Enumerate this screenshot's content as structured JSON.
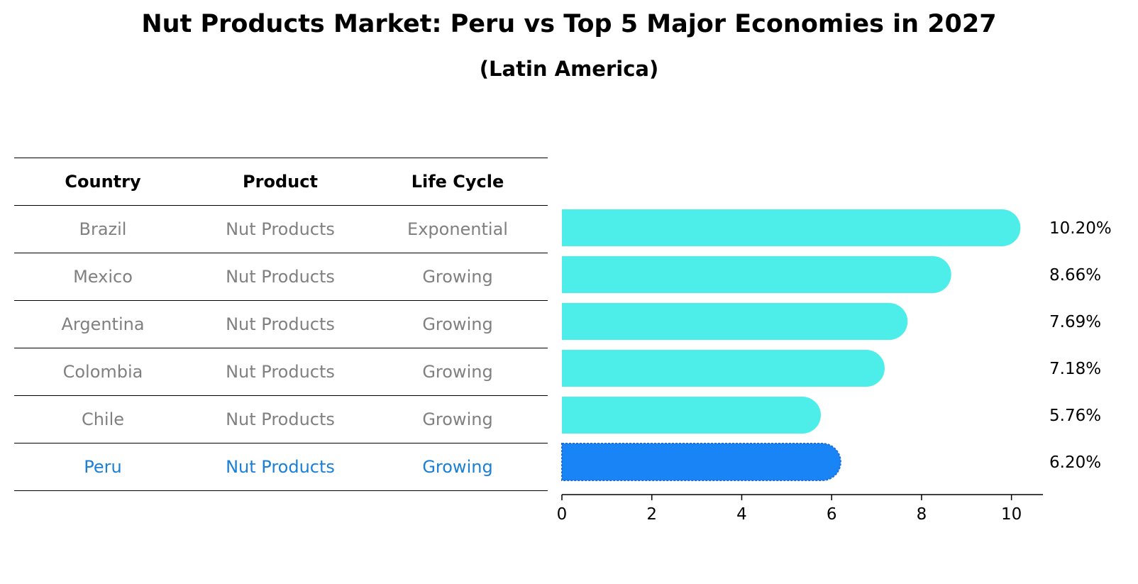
{
  "title": "Nut Products Market: Peru vs Top 5 Major Economies in 2027",
  "subtitle": "(Latin America)",
  "table": {
    "headers": [
      "Country",
      "Product",
      "Life Cycle"
    ],
    "rows": [
      {
        "country": "Brazil",
        "product": "Nut Products",
        "life_cycle": "Exponential"
      },
      {
        "country": "Mexico",
        "product": "Nut Products",
        "life_cycle": "Growing"
      },
      {
        "country": "Argentina",
        "product": "Nut Products",
        "life_cycle": "Growing"
      },
      {
        "country": "Colombia",
        "product": "Nut Products",
        "life_cycle": "Growing"
      },
      {
        "country": "Chile",
        "product": "Nut Products",
        "life_cycle": "Growing"
      },
      {
        "country": "Peru",
        "product": "Nut Products",
        "life_cycle": "Growing"
      }
    ]
  },
  "chart_data": {
    "type": "bar",
    "orientation": "horizontal",
    "categories": [
      "Brazil",
      "Mexico",
      "Argentina",
      "Colombia",
      "Chile",
      "Peru"
    ],
    "values": [
      10.2,
      8.66,
      7.69,
      7.18,
      5.76,
      6.2
    ],
    "value_labels": [
      "10.20%",
      "8.66%",
      "7.69%",
      "7.18%",
      "5.76%",
      "6.20%"
    ],
    "highlight": "Peru",
    "xlim": [
      0,
      10.7
    ],
    "xticks": [
      0,
      2,
      4,
      6,
      8,
      10
    ],
    "colors": {
      "default": "#4deeea",
      "highlight": "#1984f5"
    }
  }
}
